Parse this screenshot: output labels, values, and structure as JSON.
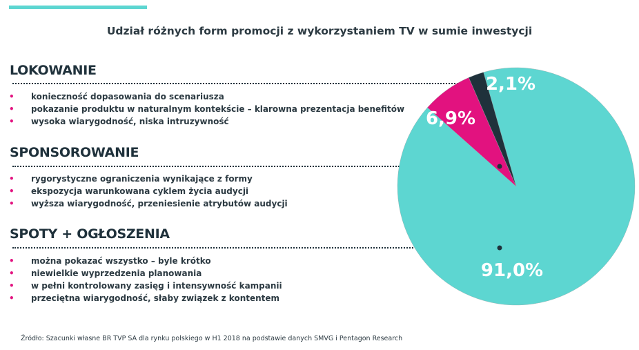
{
  "title": "Udział różnych form promocji z wykorzystaniem TV w sumie inwestycji",
  "sections": [
    {
      "heading": "LOKOWANIE",
      "items": [
        "konieczność dopasowania do scenariusza",
        "pokazanie produktu w naturalnym kontekście – klarowna prezentacja benefitów",
        "wysoka wiarygodność, niska intruzywność"
      ]
    },
    {
      "heading": "SPONSOROWANIE",
      "items": [
        "rygorystyczne ograniczenia wynikające z formy",
        "ekspozycja warunkowana cyklem życia audycji",
        "wyższa wiarygodność, przeniesienie atrybutów audycji"
      ]
    },
    {
      "heading": "SPOTY + OGŁOSZENIA",
      "items": [
        "można pokazać wszystko – byle krótko",
        "niewielkie wyprzedzenia planowania",
        "w pełni kontrolowany zasięg i intensywność kampanii",
        "przeciętna wiarygodność, słaby związek z kontentem"
      ]
    }
  ],
  "footer": "Źródło: Szacunki własne BR TVP SA dla rynku polskiego w H1 2018 na podstawie danych SMVG i Pentagon Research",
  "colors": {
    "accent": "#5dd6d1",
    "bullet": "#e2127f"
  },
  "chart_data": {
    "type": "pie",
    "slices": [
      {
        "category": "SPOTY + OGŁOSZENIA",
        "value": 91.0,
        "label": "91,0%",
        "color": "#5dd6d1"
      },
      {
        "category": "SPONSOROWANIE",
        "value": 6.9,
        "label": "6,9%",
        "color": "#e2127f"
      },
      {
        "category": "LOKOWANIE",
        "value": 2.1,
        "label": "2,1%",
        "color": "#1f313b"
      }
    ]
  }
}
